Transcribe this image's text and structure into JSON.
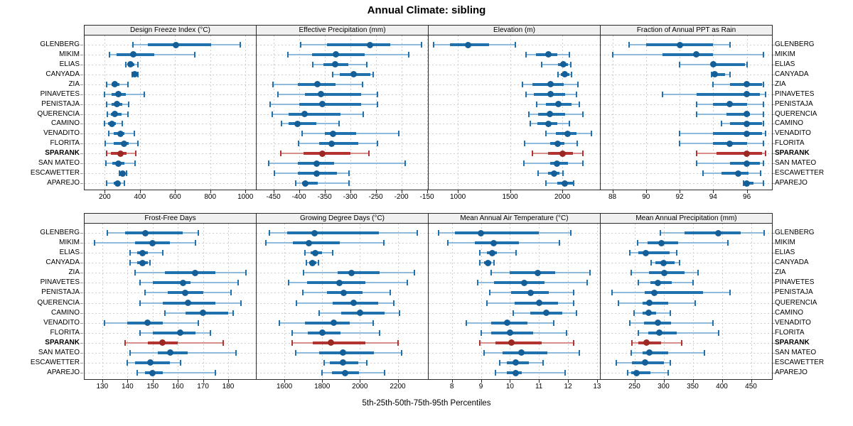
{
  "colors": {
    "blue_band": "#1f72ad",
    "blue_light": "#8fbcdc",
    "blue_dot": "#155f98",
    "red_band": "#b23330",
    "red_light": "#d98f8b",
    "red_dot": "#9b2823",
    "strip_bg": "#f0f0f0",
    "border": "#2b2b2b",
    "grid": "#cfcfcf"
  },
  "chart_data": {
    "type": "dotplot",
    "title": "Annual Climate: sibling",
    "caption": "5th-25th-50th-75th-95th Percentiles",
    "percentiles": [
      5,
      25,
      50,
      75,
      95
    ],
    "legend_position": "none",
    "grid": true,
    "highlight": "SPARANK",
    "stations": [
      "GLENBERG",
      "MIKIM",
      "ELIAS",
      "CANYADA",
      "ZIA",
      "PINAVETES",
      "PENISTAJA",
      "QUERENCIA",
      "CAMINO",
      "VENADITO",
      "FLORITA",
      "SPARANK",
      "SAN MATEO",
      "ESCAWETTER",
      "APAREJO"
    ],
    "panels": [
      {
        "title": "Design Freeze Index (°C)",
        "xlim": [
          85,
          1060
        ],
        "ticks": [
          200,
          400,
          600,
          800,
          1000
        ],
        "values": [
          [
            360,
            445,
            605,
            805,
            970
          ],
          [
            225,
            265,
            360,
            480,
            710
          ],
          [
            318,
            330,
            345,
            370,
            390
          ],
          [
            355,
            362,
            368,
            377,
            388
          ],
          [
            210,
            240,
            258,
            285,
            330
          ],
          [
            200,
            240,
            275,
            320,
            424
          ],
          [
            209,
            240,
            270,
            299,
            337
          ],
          [
            213,
            234,
            256,
            295,
            332
          ],
          [
            200,
            220,
            239,
            262,
            301
          ],
          [
            222,
            250,
            290,
            312,
            370
          ],
          [
            202,
            250,
            310,
            337,
            388
          ],
          [
            209,
            234,
            290,
            323,
            377
          ],
          [
            206,
            243,
            276,
            310,
            374
          ],
          [
            284,
            295,
            303,
            314,
            323
          ],
          [
            209,
            250,
            273,
            284,
            310
          ]
        ]
      },
      {
        "title": "Effective Precipitation (mm)",
        "xlim": [
          -483,
          -148
        ],
        "ticks": [
          -450,
          -400,
          -350,
          -300,
          -250,
          -200,
          -150
        ],
        "values": [
          [
            -397,
            -345,
            -262,
            -222,
            -160
          ],
          [
            -422,
            -375,
            -328,
            -272,
            -186
          ],
          [
            -373,
            -352,
            -330,
            -303,
            -268
          ],
          [
            -335,
            -320,
            -294,
            -261,
            -255
          ],
          [
            -451,
            -403,
            -364,
            -329,
            -276
          ],
          [
            -441,
            -389,
            -357,
            -278,
            -247
          ],
          [
            -456,
            -400,
            -355,
            -279,
            -247
          ],
          [
            -452,
            -420,
            -389,
            -319,
            -274
          ],
          [
            -434,
            -420,
            -403,
            -366,
            -322
          ],
          [
            -394,
            -350,
            -333,
            -289,
            -205
          ],
          [
            -401,
            -361,
            -336,
            -284,
            -247
          ],
          [
            -436,
            -392,
            -355,
            -300,
            -263
          ],
          [
            -459,
            -403,
            -366,
            -331,
            -193
          ],
          [
            -448,
            -403,
            -365,
            -326,
            -302
          ],
          [
            -406,
            -394,
            -388,
            -364,
            -303
          ]
        ]
      },
      {
        "title": "Elevation (m)",
        "xlim": [
          720,
          2360
        ],
        "ticks": [
          1000,
          1500,
          2000
        ],
        "values": [
          [
            770,
            925,
            1100,
            1300,
            1550
          ],
          [
            1650,
            1750,
            1865,
            1950,
            2065
          ],
          [
            1800,
            1960,
            2010,
            2055,
            2080
          ],
          [
            1955,
            1985,
            2020,
            2065,
            2090
          ],
          [
            1620,
            1715,
            1890,
            2010,
            2150
          ],
          [
            1650,
            1725,
            1890,
            2030,
            2135
          ],
          [
            1755,
            1845,
            1960,
            2090,
            2160
          ],
          [
            1680,
            1770,
            1880,
            2030,
            2195
          ],
          [
            1695,
            1760,
            1865,
            1950,
            2065
          ],
          [
            1845,
            1935,
            2050,
            2135,
            2280
          ],
          [
            1635,
            1880,
            1955,
            2020,
            2145
          ],
          [
            1713,
            1865,
            2000,
            2100,
            2195
          ],
          [
            1630,
            1880,
            1950,
            2055,
            2195
          ],
          [
            1770,
            1865,
            1920,
            1970,
            2005
          ],
          [
            1840,
            1950,
            2020,
            2100,
            2110
          ]
        ]
      },
      {
        "title": "Fraction of Annual PPT as Rain",
        "xlim": [
          87.3,
          97.5
        ],
        "ticks": [
          88,
          90,
          92,
          94,
          96
        ],
        "values": [
          [
            89,
            90,
            92,
            94,
            95
          ],
          [
            88,
            91,
            93,
            94,
            97
          ],
          [
            92,
            93.9,
            94,
            95.9,
            96
          ],
          [
            93.9,
            94,
            94.1,
            94.7,
            95
          ],
          [
            94,
            95,
            96,
            96.9,
            97
          ],
          [
            91,
            93,
            96,
            96.8,
            97.1
          ],
          [
            93,
            94,
            95,
            96,
            97
          ],
          [
            93,
            94.8,
            96,
            96.2,
            97
          ],
          [
            94.5,
            95,
            96,
            96.9,
            97
          ],
          [
            92,
            94,
            96,
            96.9,
            97.1
          ],
          [
            92,
            94,
            95,
            96,
            97
          ],
          [
            93,
            94.2,
            96,
            96.9,
            97.1
          ],
          [
            93,
            95,
            96,
            96.8,
            97
          ],
          [
            93.4,
            94.5,
            95.5,
            96.1,
            96.8
          ],
          [
            95.8,
            95.9,
            96,
            96.4,
            97
          ]
        ]
      },
      {
        "title": "Frost-Free Days",
        "xlim": [
          123,
          191
        ],
        "ticks": [
          130,
          140,
          150,
          160,
          170,
          180
        ],
        "values": [
          [
            132,
            139,
            147,
            162,
            168
          ],
          [
            127,
            143,
            150,
            157,
            167
          ],
          [
            141,
            144,
            146,
            148,
            154
          ],
          [
            141,
            144,
            146,
            148,
            149
          ],
          [
            143,
            155,
            167,
            175,
            187
          ],
          [
            145,
            150,
            162,
            165,
            184
          ],
          [
            147,
            156,
            163,
            170,
            181
          ],
          [
            145,
            154,
            164,
            175,
            185
          ],
          [
            155,
            163,
            170,
            180,
            182
          ],
          [
            131,
            140,
            148,
            154,
            168
          ],
          [
            145,
            150,
            161,
            167,
            173
          ],
          [
            139,
            148,
            154,
            160,
            178
          ],
          [
            141,
            152,
            157,
            164,
            183
          ],
          [
            140,
            143,
            149,
            157,
            161
          ],
          [
            144,
            147,
            150,
            154,
            175
          ]
        ]
      },
      {
        "title": "Growing Degree Days (°C)",
        "xlim": [
          1453,
          2360
        ],
        "ticks": [
          1600,
          1800,
          2000,
          2200
        ],
        "values": [
          [
            1520,
            1615,
            1760,
            2100,
            2305
          ],
          [
            1500,
            1645,
            1730,
            1895,
            2125
          ],
          [
            1710,
            1740,
            1765,
            1800,
            1855
          ],
          [
            1715,
            1732,
            1748,
            1768,
            1782
          ],
          [
            1700,
            1880,
            1955,
            2105,
            2290
          ],
          [
            1623,
            1720,
            1890,
            2030,
            2250
          ],
          [
            1698,
            1825,
            1915,
            2015,
            2160
          ],
          [
            1665,
            1855,
            1965,
            2095,
            2180
          ],
          [
            1785,
            1900,
            2000,
            2130,
            2210
          ],
          [
            1573,
            1710,
            1860,
            1945,
            2070
          ],
          [
            1640,
            1722,
            1800,
            1895,
            2105
          ],
          [
            1640,
            1750,
            1845,
            2030,
            2200
          ],
          [
            1660,
            1785,
            1910,
            2075,
            2220
          ],
          [
            1810,
            1840,
            1910,
            1990,
            2035
          ],
          [
            1800,
            1850,
            1920,
            1995,
            2130
          ]
        ]
      },
      {
        "title": "Mean Annual Air Temperature (°C)",
        "xlim": [
          7.2,
          13.1
        ],
        "ticks": [
          8,
          9,
          10,
          11,
          12,
          13
        ],
        "values": [
          [
            7.55,
            8.1,
            9.0,
            11.0,
            12.1
          ],
          [
            7.85,
            8.8,
            9.45,
            10.3,
            11.7
          ],
          [
            8.95,
            9.2,
            9.4,
            9.55,
            10.2
          ],
          [
            8.95,
            9.1,
            9.25,
            9.35,
            9.45
          ],
          [
            9.35,
            10.0,
            10.95,
            11.55,
            12.75
          ],
          [
            8.9,
            9.45,
            10.5,
            11.2,
            12.65
          ],
          [
            9.3,
            10.05,
            10.7,
            11.35,
            12.2
          ],
          [
            9.2,
            10.15,
            11.0,
            11.65,
            12.2
          ],
          [
            10.1,
            10.7,
            11.25,
            11.8,
            12.3
          ],
          [
            8.5,
            9.35,
            9.9,
            10.6,
            11.5
          ],
          [
            9.0,
            9.35,
            10.0,
            10.8,
            11.95
          ],
          [
            8.95,
            9.5,
            10.05,
            11.1,
            12.2
          ],
          [
            9.1,
            9.75,
            10.4,
            11.3,
            12.4
          ],
          [
            9.65,
            9.9,
            10.2,
            10.65,
            11.15
          ],
          [
            9.5,
            9.9,
            10.2,
            10.4,
            11.9
          ]
        ]
      },
      {
        "title": "Mean Annual Precipitation (mm)",
        "xlim": [
          192,
          486
        ],
        "ticks": [
          250,
          300,
          350,
          400,
          450
        ],
        "values": [
          [
            295,
            336,
            394,
            432,
            472
          ],
          [
            255,
            272,
            296,
            325,
            410
          ],
          [
            242,
            256,
            269,
            310,
            322
          ],
          [
            278,
            286,
            300,
            319,
            327
          ],
          [
            245,
            275,
            301,
            336,
            359
          ],
          [
            257,
            277,
            290,
            314,
            350
          ],
          [
            212,
            268,
            284,
            368,
            414
          ],
          [
            222,
            264,
            275,
            308,
            354
          ],
          [
            249,
            264,
            274,
            287,
            311
          ],
          [
            242,
            266,
            290,
            313,
            385
          ],
          [
            256,
            274,
            293,
            323,
            394
          ],
          [
            246,
            256,
            271,
            295,
            331
          ],
          [
            245,
            264,
            275,
            308,
            370
          ],
          [
            219,
            246,
            268,
            301,
            312
          ],
          [
            238,
            245,
            254,
            277,
            308
          ]
        ]
      }
    ]
  }
}
